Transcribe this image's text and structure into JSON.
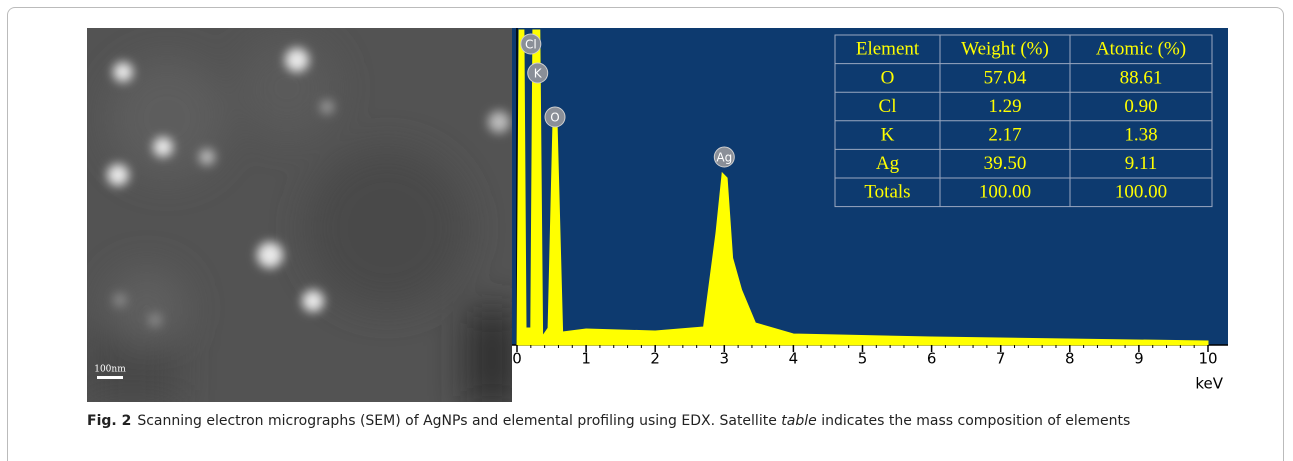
{
  "figure": {
    "sem": {
      "scale_label": "100nm"
    },
    "spectrum": {
      "xlim": [
        0,
        10
      ],
      "xticks": [
        0,
        1,
        2,
        3,
        4,
        5,
        6,
        7,
        8,
        9,
        10
      ],
      "xlabel": "keV",
      "peaks": [
        {
          "label": "Cl",
          "x": 0.2
        },
        {
          "label": "K",
          "x": 0.3
        },
        {
          "label": "O",
          "x": 0.55
        },
        {
          "label": "Ag",
          "x": 3.0
        }
      ]
    },
    "table": {
      "headers": [
        "Element",
        "Weight (%)",
        "Atomic (%)"
      ],
      "rows": [
        [
          "O",
          "57.04",
          "88.61"
        ],
        [
          "Cl",
          "1.29",
          "0.90"
        ],
        [
          "K",
          "2.17",
          "1.38"
        ],
        [
          "Ag",
          "39.50",
          "9.11"
        ],
        [
          "Totals",
          "100.00",
          "100.00"
        ]
      ]
    }
  },
  "caption": {
    "label": "Fig. 2",
    "text_before": "Scanning electron micrographs (SEM) of AgNPs and elemental profiling using EDX. Satellite ",
    "text_italic": "table",
    "text_after": " indicates the mass composition of elements"
  }
}
